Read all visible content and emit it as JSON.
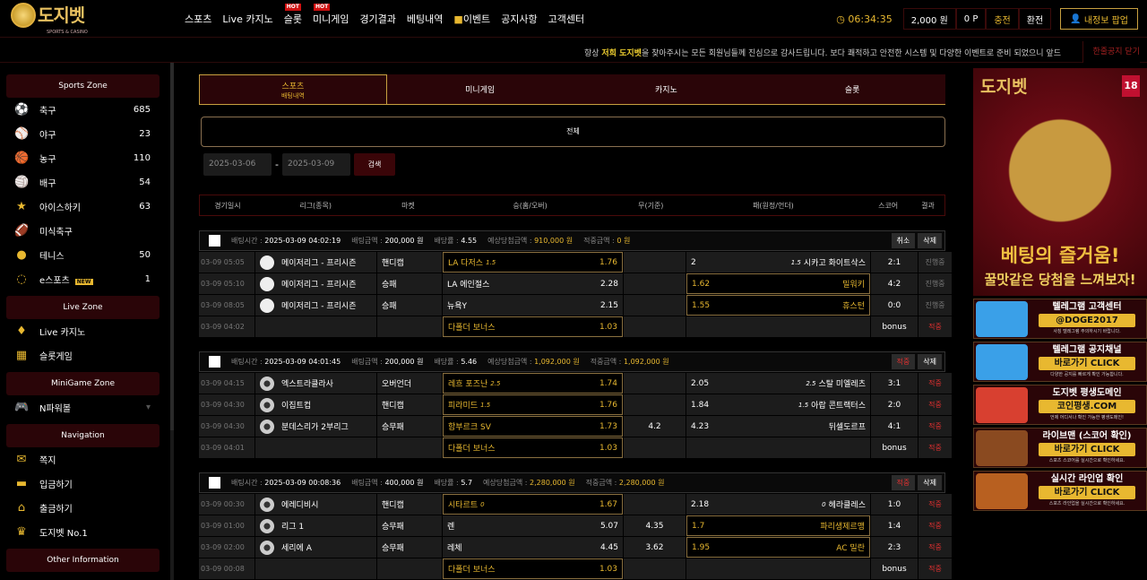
{
  "header": {
    "logo": "도지벳",
    "logo_sub": "SPORTS & CASINO",
    "nav": [
      {
        "label": "스포츠"
      },
      {
        "label": "Live 카지노"
      },
      {
        "label": "슬롯",
        "badge": "HOT"
      },
      {
        "label": "미니게임",
        "badge": "HOT"
      },
      {
        "label": "경기결과"
      },
      {
        "label": "베팅내역"
      },
      {
        "label": "이벤트",
        "icon": "gift-icon"
      },
      {
        "label": "공지사항"
      },
      {
        "label": "고객센터"
      }
    ],
    "clock": "06:34:35",
    "balance": "2,000 원",
    "points": "0 P",
    "deposit": "충전",
    "withdraw": "환전",
    "my_info": "내정보 팝업"
  },
  "notice": {
    "prefix": "항상 ",
    "highlight": "저희 도지벳",
    "text": "을 찾아주시는 모든 회원님들께 진심으로 감사드립니다. 보다 쾌적하고 안전한 시스템 및 다양한 이벤트로 준비 되었으니 앞드",
    "close": "한줄공지 닫기"
  },
  "sidebar": [
    {
      "title": "Sports Zone",
      "items": [
        {
          "icon": "soccer-icon",
          "glyph": "⚽",
          "label": "축구",
          "count": "685"
        },
        {
          "icon": "baseball-icon",
          "glyph": "⚾",
          "label": "야구",
          "count": "23"
        },
        {
          "icon": "basketball-icon",
          "glyph": "🏀",
          "label": "농구",
          "count": "110"
        },
        {
          "icon": "volleyball-icon",
          "glyph": "🏐",
          "label": "배구",
          "count": "54"
        },
        {
          "icon": "hockey-icon",
          "glyph": "★",
          "label": "아이스하키",
          "count": "63"
        },
        {
          "icon": "football-icon",
          "glyph": "🏈",
          "label": "미식축구",
          "count": ""
        },
        {
          "icon": "tennis-icon",
          "glyph": "●",
          "label": "테니스",
          "count": "50"
        },
        {
          "icon": "esports-icon",
          "glyph": "◌",
          "label": "e스포츠",
          "badge": "NEW",
          "count": "1"
        }
      ]
    },
    {
      "title": "Live Zone",
      "items": [
        {
          "icon": "diamond-icon",
          "glyph": "♦",
          "label": "Live 카지노"
        },
        {
          "icon": "slot-icon",
          "glyph": "▦",
          "label": "슬롯게임"
        }
      ]
    },
    {
      "title": "MiniGame Zone",
      "items": [
        {
          "icon": "gamepad-icon",
          "glyph": "🎮",
          "label": "N파워볼",
          "caret": "▾"
        }
      ]
    },
    {
      "title": "Navigation",
      "items": [
        {
          "icon": "mail-icon",
          "glyph": "✉",
          "label": "쪽지"
        },
        {
          "icon": "wallet-icon",
          "glyph": "▬",
          "label": "입금하기"
        },
        {
          "icon": "bank-icon",
          "glyph": "⌂",
          "label": "출금하기"
        },
        {
          "icon": "crown-icon",
          "glyph": "♛",
          "label": "도지벳 No.1"
        }
      ]
    },
    {
      "title": "Other Information",
      "items": []
    }
  ],
  "tabs": [
    {
      "label": "스포츠",
      "sub": "배팅내역",
      "active": true
    },
    {
      "label": "미니게임"
    },
    {
      "label": "카지노"
    },
    {
      "label": "슬롯"
    }
  ],
  "filter": "전체",
  "date_from": "2025-03-06",
  "date_to": "2025-03-09",
  "date_sep": "-",
  "search": "검색",
  "columns": [
    "경기일시",
    "리그(종목)",
    "마켓",
    "승(홈/오버)",
    "무(기준)",
    "패(원정/언더)",
    "스코어",
    "결과"
  ],
  "labels": {
    "time": "배팅시간 :",
    "amount": "배팅금액 :",
    "odds": "배당률 :",
    "expected": "예상당첨금액 :",
    "win": "적중금액 :"
  },
  "bets": [
    {
      "time": "2025-03-09 04:02:19",
      "amount": "200,000 원",
      "odds": "4.55",
      "expected": "910,000 원",
      "win": "0 원",
      "buttons": [
        {
          "label": "취소",
          "red": false
        },
        {
          "label": "삭제",
          "red": false
        }
      ],
      "rows": [
        {
          "date": "03-09 05:05",
          "sport": "baseball",
          "league": "메이저리그 - 프리시즌",
          "market": "핸디캡",
          "home": "LA 다저스",
          "home_hc": "1.5",
          "home_odds": "1.76",
          "home_sel": true,
          "draw": "",
          "away_odds": "2",
          "away": "시카고 화이트삭스",
          "away_hc": "1.5",
          "away_sel": false,
          "score": "2:1",
          "result": "진행중",
          "res_color": "gray"
        },
        {
          "date": "03-09 05:10",
          "sport": "baseball",
          "league": "메이저리그 - 프리시즌",
          "market": "승패",
          "home": "LA 에인절스",
          "home_hc": "",
          "home_odds": "2.28",
          "home_sel": false,
          "draw": "",
          "away_odds": "1.62",
          "away": "밀워키",
          "away_hc": "",
          "away_sel": true,
          "score": "4:2",
          "result": "진행중",
          "res_color": "gray"
        },
        {
          "date": "03-09 08:05",
          "sport": "baseball",
          "league": "메이저리그 - 프리시즌",
          "market": "승패",
          "home": "뉴욕Y",
          "home_hc": "",
          "home_odds": "2.15",
          "home_sel": false,
          "draw": "",
          "away_odds": "1.55",
          "away": "휴스턴",
          "away_hc": "",
          "away_sel": true,
          "score": "0:0",
          "result": "진행중",
          "res_color": "gray"
        },
        {
          "date": "03-09 04:02",
          "sport": "",
          "league": "",
          "market": "",
          "home": "다폴더 보너스",
          "home_hc": "",
          "home_odds": "1.03",
          "home_sel": true,
          "draw": "",
          "away_odds": "",
          "away": "",
          "away_hc": "",
          "away_sel": false,
          "score": "bonus",
          "result": "적중",
          "res_color": "red"
        }
      ]
    },
    {
      "time": "2025-03-09 04:01:45",
      "amount": "200,000 원",
      "odds": "5.46",
      "expected": "1,092,000 원",
      "win": "1,092,000 원",
      "buttons": [
        {
          "label": "적중",
          "red": true
        },
        {
          "label": "삭제",
          "red": false
        }
      ],
      "rows": [
        {
          "date": "03-09 04:15",
          "sport": "soccer",
          "league": "엑스트라클라사",
          "market": "오버언더",
          "home": "레흐 포즈난",
          "home_hc": "2.5",
          "home_odds": "1.74",
          "home_sel": true,
          "draw": "",
          "away_odds": "2.05",
          "away": "스탈 미엘레츠",
          "away_hc": "2.5",
          "away_sel": false,
          "score": "3:1",
          "result": "적중",
          "res_color": "red"
        },
        {
          "date": "03-09 04:30",
          "sport": "soccer",
          "league": "이집트컵",
          "market": "핸디캡",
          "home": "피라미드",
          "home_hc": "1.5",
          "home_odds": "1.76",
          "home_sel": true,
          "draw": "",
          "away_odds": "1.84",
          "away": "아랍 콘트랙터스",
          "away_hc": "1.5",
          "away_sel": false,
          "score": "2:0",
          "result": "적중",
          "res_color": "red"
        },
        {
          "date": "03-09 04:30",
          "sport": "soccer",
          "league": "분데스리가 2부리그",
          "market": "승무패",
          "home": "함부르크 SV",
          "home_hc": "",
          "home_odds": "1.73",
          "home_sel": true,
          "draw": "4.2",
          "away_odds": "4.23",
          "away": "뒤셀도르프",
          "away_hc": "",
          "away_sel": false,
          "score": "4:1",
          "result": "적중",
          "res_color": "red"
        },
        {
          "date": "03-09 04:01",
          "sport": "",
          "league": "",
          "market": "",
          "home": "다폴더 보너스",
          "home_hc": "",
          "home_odds": "1.03",
          "home_sel": true,
          "draw": "",
          "away_odds": "",
          "away": "",
          "away_hc": "",
          "away_sel": false,
          "score": "bonus",
          "result": "적중",
          "res_color": "red"
        }
      ]
    },
    {
      "time": "2025-03-09 00:08:36",
      "amount": "400,000 원",
      "odds": "5.7",
      "expected": "2,280,000 원",
      "win": "2,280,000 원",
      "buttons": [
        {
          "label": "적중",
          "red": true
        },
        {
          "label": "삭제",
          "red": false
        }
      ],
      "rows": [
        {
          "date": "03-09 00:30",
          "sport": "soccer",
          "league": "에레디비시",
          "market": "핸디캡",
          "home": "시타르트",
          "home_hc": "0",
          "home_odds": "1.67",
          "home_sel": true,
          "draw": "",
          "away_odds": "2.18",
          "away": "헤라클레스",
          "away_hc": "0",
          "away_sel": false,
          "score": "1:0",
          "result": "적중",
          "res_color": "red"
        },
        {
          "date": "03-09 01:00",
          "sport": "soccer",
          "league": "리그 1",
          "market": "승무패",
          "home": "렌",
          "home_hc": "",
          "home_odds": "5.07",
          "home_sel": false,
          "draw": "4.35",
          "away_odds": "1.7",
          "away": "파리생제르맹",
          "away_hc": "",
          "away_sel": true,
          "score": "1:4",
          "result": "적중",
          "res_color": "red"
        },
        {
          "date": "03-09 02:00",
          "sport": "soccer",
          "league": "세리에 A",
          "market": "승무패",
          "home": "레체",
          "home_hc": "",
          "home_odds": "4.45",
          "home_sel": false,
          "draw": "3.62",
          "away_odds": "1.95",
          "away": "AC 밀란",
          "away_hc": "",
          "away_sel": true,
          "score": "2:3",
          "result": "적중",
          "res_color": "red"
        },
        {
          "date": "03-09 00:08",
          "sport": "",
          "league": "",
          "market": "",
          "home": "다폴더 보너스",
          "home_hc": "",
          "home_odds": "1.03",
          "home_sel": true,
          "draw": "",
          "away_odds": "",
          "away": "",
          "away_hc": "",
          "away_sel": false,
          "score": "bonus",
          "result": "적중",
          "res_color": "red"
        }
      ]
    }
  ],
  "right": {
    "big": {
      "logo": "도지벳",
      "age": "18",
      "line1": "베팅의 즐거움!",
      "line2": "꿀맛같은 당첨을 느껴보자!"
    },
    "banners": [
      {
        "title": "텔레그램 고객센터",
        "pill": "@DOGE2017",
        "small": "사칭 텔레그램 주의하시기 바랍니다.",
        "color": "#3aa0e8"
      },
      {
        "title": "텔레그램 공지채널",
        "pill": "바로가기 CLICK",
        "small": "다양한 공지를 빠르게 확인 가능합니다.",
        "color": "#3aa0e8"
      },
      {
        "title": "도지벳 평생도메인",
        "pill": "코인평생.COM",
        "small": "언제 어디서나 확인 가능한 평생도메인!",
        "color": "#d84030"
      },
      {
        "title": "라이브맨 (스코어 확인)",
        "pill": "바로가기 CLICK",
        "small": "스포츠 스코어를 실시간으로 확인하세요.",
        "color": "#8a4a20"
      },
      {
        "title": "실시간 라인업 확인",
        "pill": "바로가기 CLICK",
        "small": "스포츠 라인업을 실시간으로 확인하세요.",
        "color": "#b86020"
      }
    ]
  }
}
